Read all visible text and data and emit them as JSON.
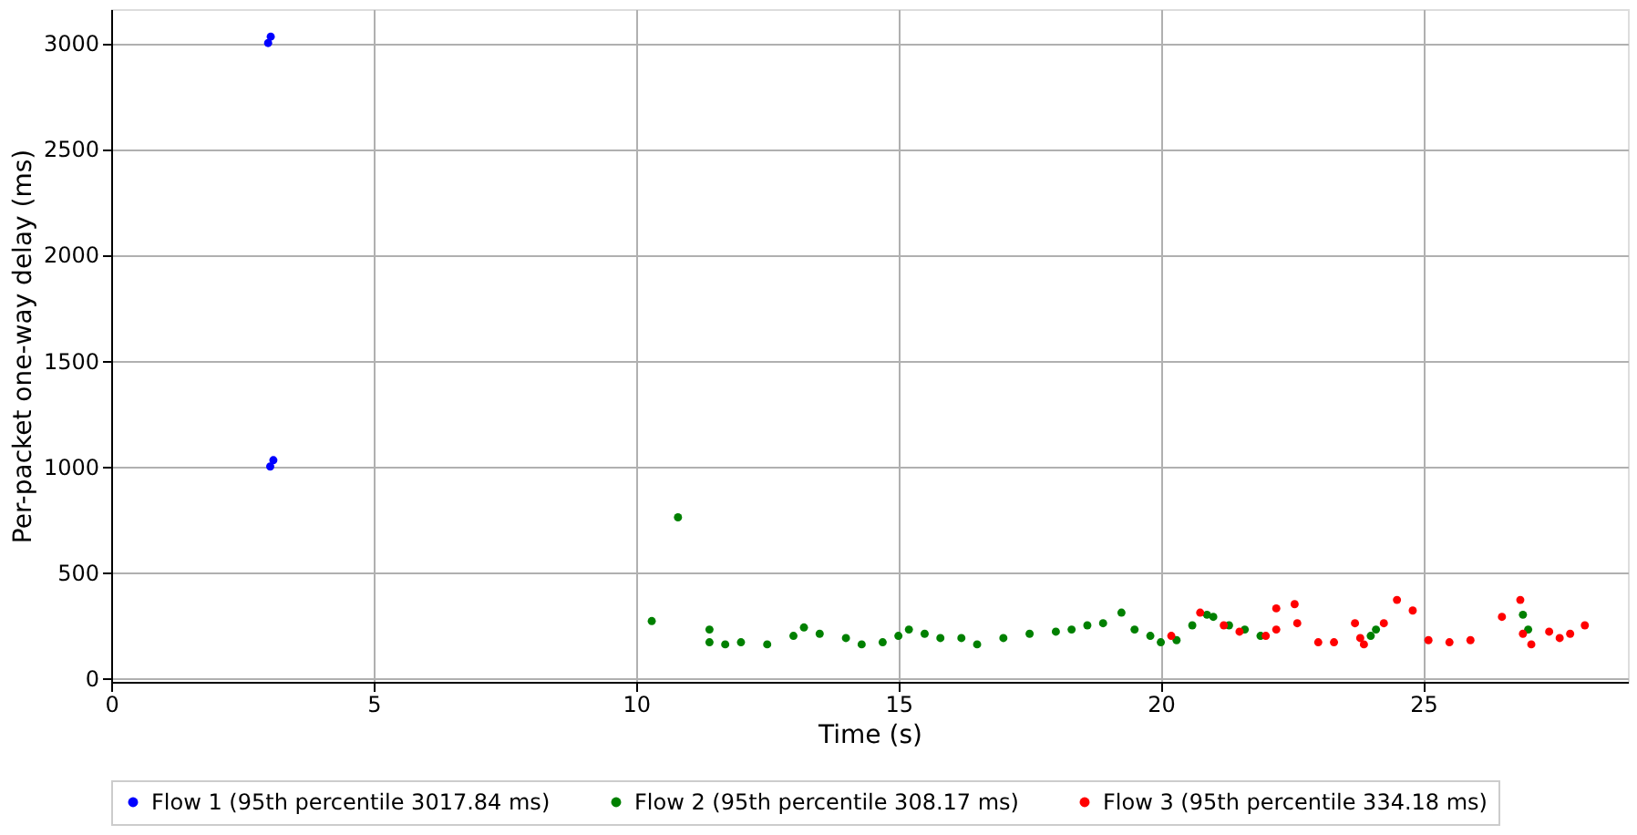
{
  "chart_data": {
    "type": "scatter",
    "xlabel": "Time (s)",
    "ylabel": "Per-packet one-way delay (ms)",
    "xlim": [
      0,
      28.9
    ],
    "ylim": [
      -17,
      3160
    ],
    "xticks": [
      0,
      5,
      10,
      15,
      20,
      25
    ],
    "yticks": [
      0,
      500,
      1000,
      1500,
      2000,
      2500,
      3000
    ],
    "grid": true,
    "legend": "bottom",
    "marker": "circle",
    "series": [
      {
        "name": "Flow 1 (95th percentile 3017.84 ms)",
        "color": "#0000ff",
        "x": [
          2.99,
          3.04,
          3.03,
          3.09
        ],
        "values": [
          3000,
          3030,
          1000,
          1030
        ]
      },
      {
        "name": "Flow 2 (95th percentile 308.17 ms)",
        "color": "#008000",
        "x": [
          10.3,
          10.8,
          11.4,
          11.4,
          11.7,
          12.0,
          12.5,
          13.0,
          13.2,
          13.5,
          14.0,
          14.3,
          14.7,
          15.0,
          15.2,
          15.5,
          15.8,
          16.2,
          16.5,
          17.0,
          17.5,
          18.0,
          18.3,
          18.6,
          18.9,
          19.25,
          19.5,
          19.8,
          20.0,
          20.3,
          20.6,
          20.88,
          21.0,
          21.3,
          21.6,
          21.9,
          24.0,
          24.1,
          26.9,
          27.0
        ],
        "values": [
          270,
          760,
          230,
          170,
          160,
          170,
          160,
          200,
          240,
          210,
          190,
          160,
          170,
          200,
          230,
          210,
          190,
          190,
          160,
          190,
          210,
          220,
          230,
          250,
          260,
          310,
          230,
          200,
          170,
          180,
          250,
          300,
          290,
          250,
          230,
          200,
          200,
          230,
          300,
          230
        ]
      },
      {
        "name": "Flow 3 (95th percentile 334.18 ms)",
        "color": "#ff0000",
        "x": [
          20.2,
          20.75,
          21.2,
          21.5,
          22.0,
          22.2,
          22.2,
          22.55,
          22.6,
          23.0,
          23.3,
          23.7,
          23.8,
          23.87,
          24.25,
          24.5,
          24.8,
          25.1,
          25.5,
          25.9,
          26.5,
          26.85,
          26.9,
          27.06,
          27.4,
          27.6,
          27.8,
          28.08
        ],
        "values": [
          200,
          310,
          250,
          220,
          200,
          230,
          330,
          350,
          260,
          170,
          170,
          260,
          190,
          160,
          260,
          370,
          320,
          180,
          170,
          180,
          290,
          370,
          210,
          160,
          220,
          190,
          210,
          250
        ]
      }
    ]
  }
}
